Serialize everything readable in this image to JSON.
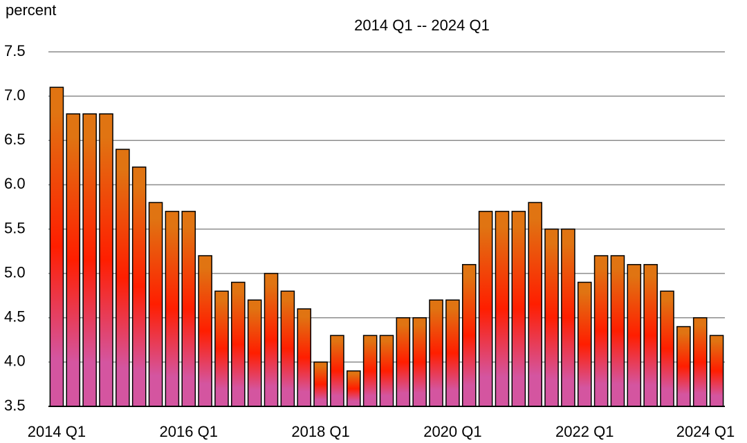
{
  "chart_data": {
    "type": "bar",
    "subtitle": "2014 Q1 -- 2024 Q1",
    "y_label": "percent",
    "categories": [
      "2014 Q1",
      null,
      null,
      null,
      null,
      null,
      null,
      null,
      "2016 Q1",
      null,
      null,
      null,
      null,
      null,
      null,
      null,
      "2018 Q1",
      null,
      null,
      null,
      null,
      null,
      null,
      null,
      "2020 Q1",
      null,
      null,
      null,
      null,
      null,
      null,
      null,
      "2022 Q1",
      null,
      null,
      null,
      null,
      null,
      null,
      null,
      "2024 Q1"
    ],
    "values": [
      7.1,
      6.8,
      6.8,
      6.8,
      6.4,
      6.2,
      5.8,
      5.7,
      5.7,
      5.2,
      4.8,
      4.9,
      4.7,
      5.0,
      4.8,
      4.6,
      4.0,
      4.3,
      3.9,
      4.3,
      4.3,
      4.5,
      4.5,
      4.7,
      4.7,
      5.1,
      5.7,
      5.7,
      5.7,
      5.8,
      5.5,
      5.5,
      4.9,
      5.2,
      5.2,
      5.1,
      5.1,
      4.8,
      4.4,
      4.5,
      4.3
    ],
    "colors": [
      "#e07412",
      "#ff1e00",
      "#d455a0"
    ],
    "ylim": [
      3.5,
      7.5
    ],
    "yticks": [
      3.5,
      {
        "value": 4,
        "label": "4.0"
      },
      4.5,
      {
        "value": 5,
        "label": "5.0"
      },
      5.5,
      {
        "value": 6,
        "label": "6.0"
      },
      6.5,
      {
        "value": 7,
        "label": "7.0"
      },
      7.5
    ],
    "grid": true
  }
}
